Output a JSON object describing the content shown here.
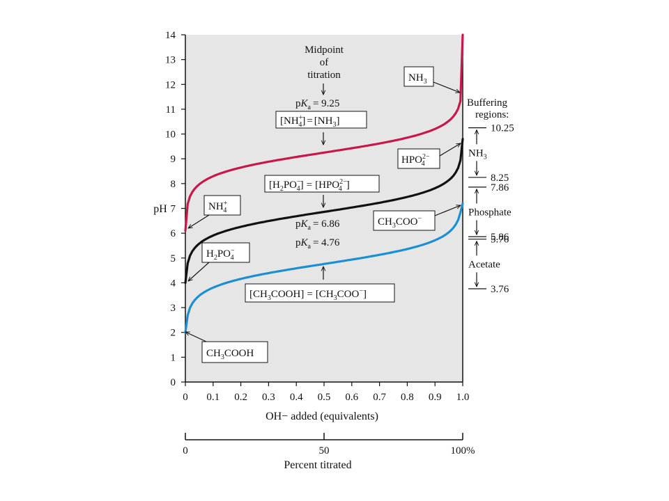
{
  "chart_data": {
    "type": "line",
    "xlabel": "OH− added (equivalents)",
    "ylabel": "pH",
    "xlim": [
      0,
      1
    ],
    "ylim": [
      0,
      14
    ],
    "x_ticks": [
      "0",
      "0.1",
      "0.2",
      "0.3",
      "0.4",
      "0.5",
      "0.6",
      "0.7",
      "0.8",
      "0.9",
      "1.0"
    ],
    "y_ticks": [
      "0",
      "1",
      "2",
      "3",
      "4",
      "5",
      "6",
      "7",
      "8",
      "9",
      "10",
      "11",
      "12",
      "13",
      "14"
    ],
    "percent_axis": {
      "label": "Percent titrated",
      "ticks": [
        "0",
        "50",
        "100%"
      ]
    },
    "background": "#e6e6e6",
    "series": [
      {
        "color": "#c8174a",
        "pKa": 9.25,
        "start": [
          0,
          6.1
        ],
        "end": [
          1,
          14
        ]
      },
      {
        "color": "#111111",
        "pKa": 6.86,
        "start": [
          0,
          4.0
        ],
        "end": [
          1,
          9.8
        ]
      },
      {
        "color": "#1c8fd0",
        "pKa": 4.76,
        "start": [
          0,
          2.0
        ],
        "end": [
          1,
          7.2
        ]
      }
    ],
    "annotations": {
      "midpoint": [
        "Midpoint",
        "of",
        "titration"
      ],
      "pka_nh3_value": "= 9.25",
      "pka_phosphate_value": "= 6.86",
      "pka_acetate_value": "= 4.76"
    },
    "buffering": {
      "title_lines": [
        "Buffering",
        "regions:"
      ],
      "regions": [
        {
          "name": "NH",
          "name_sub": "3",
          "top": "10.25",
          "bottom": "8.25",
          "top_val": 10.25,
          "bottom_val": 8.25
        },
        {
          "name": "Phosphate",
          "name_sub": "",
          "top": "7.86",
          "bottom": "5.86",
          "top_val": 7.86,
          "bottom_val": 5.86
        },
        {
          "name": "Acetate",
          "name_sub": "",
          "top": "5.76",
          "bottom": "3.76",
          "top_val": 5.76,
          "bottom_val": 3.76
        }
      ]
    }
  }
}
